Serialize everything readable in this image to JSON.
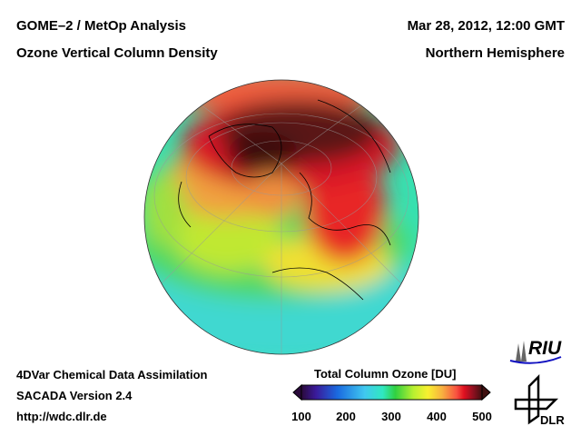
{
  "header": {
    "title_line1": "GOME–2 / MetOp Analysis",
    "title_line2": "Ozone Vertical Column Density",
    "date": "Mar 28, 2012, 12:00 GMT",
    "region": "Northern Hemisphere"
  },
  "footer": {
    "method": "4DVar Chemical Data Assimilation",
    "version": "SACADA Version 2.4",
    "url": "http://wdc.dlr.de"
  },
  "colorbar": {
    "title": "Total Column Ozone [DU]",
    "ticks": [
      "100",
      "200",
      "300",
      "400",
      "500"
    ],
    "range": [
      100,
      500
    ],
    "colors": [
      "#2a0a3a",
      "#3a1a9a",
      "#1a6ae0",
      "#40c8f0",
      "#30e8c0",
      "#30d040",
      "#b8f030",
      "#f8f030",
      "#f8b040",
      "#f85040",
      "#e01020",
      "#901020",
      "#401010"
    ]
  },
  "logos": {
    "riu": "RIU",
    "dlr": "DLR"
  }
}
